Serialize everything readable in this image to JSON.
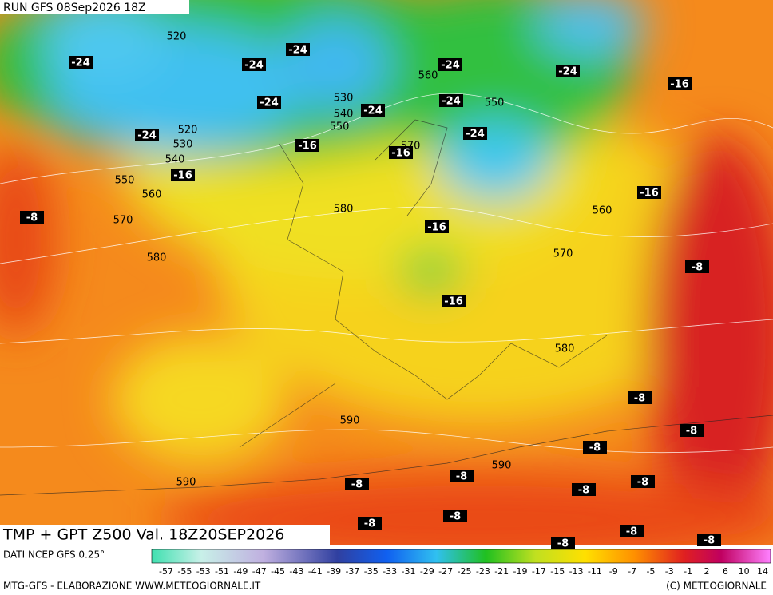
{
  "header": {
    "run": "RUN GFS 08Sep2026 18Z"
  },
  "map": {
    "title": "TMP + GPT Z500 Val. 18Z20SEP2026",
    "geopotential_labels": [
      520,
      560,
      530,
      550,
      540,
      550,
      520,
      530,
      570,
      540,
      550,
      560,
      580,
      560,
      570,
      580,
      570,
      580,
      590,
      590,
      590
    ],
    "temperature_labels": [
      -24,
      -24,
      -24,
      -24,
      -24,
      -16,
      -24,
      -24,
      -24,
      -24,
      -24,
      -16,
      -16,
      -16,
      -16,
      -8,
      -16,
      -8,
      -16,
      -8,
      -8,
      -8,
      -8,
      -8,
      -8,
      -8,
      -8,
      -8,
      -8,
      -8,
      -8
    ]
  },
  "footer": {
    "source": "DATI NCEP GFS 0.25°",
    "credit": "MTG-GFS - ELABORAZIONE WWW.METEOGIORNALE.IT",
    "copyright": "(C) METEOGIORNALE",
    "colorbar_ticks": [
      -57,
      -55,
      -53,
      -51,
      -49,
      -47,
      -45,
      -43,
      -41,
      -39,
      -37,
      -35,
      -33,
      -31,
      -29,
      -27,
      -25,
      -23,
      -21,
      -19,
      -17,
      -15,
      -13,
      -11,
      -9,
      -7,
      -5,
      -3,
      -1,
      2,
      6,
      10,
      14
    ]
  }
}
